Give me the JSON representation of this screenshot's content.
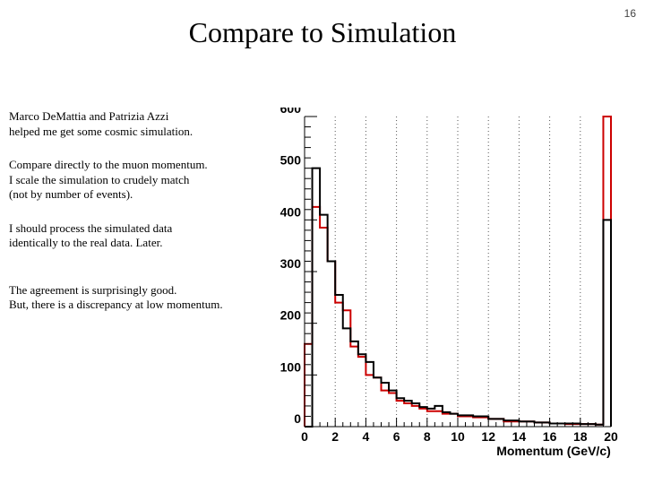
{
  "slide": {
    "title": "Compare to Simulation",
    "page_number": "16",
    "notes": [
      "Marco DeMattia and Patrizia Azzi\nhelped me get some cosmic simulation.",
      "Compare directly to the muon momentum.\nI scale the simulation to crudely match\n(not by number of events).",
      "I should process the simulated data\nidentically to the real data. Later.",
      "The agreement is surprisingly good.\nBut, there is a discrepancy at low momentum."
    ]
  },
  "chart_data": {
    "type": "step-histogram",
    "title": "",
    "xlabel": "Momentum (GeV/c)",
    "ylabel": "",
    "xlim": [
      0,
      20
    ],
    "ylim": [
      0,
      600
    ],
    "x_ticks": [
      "0",
      "2",
      "4",
      "6",
      "8",
      "10",
      "12",
      "14",
      "16",
      "18",
      "20"
    ],
    "y_ticks": [
      "0",
      "100",
      "200",
      "300",
      "400",
      "500",
      "600"
    ],
    "grid": "vertical-dotted",
    "bin_edges": [
      0,
      0.5,
      1,
      1.5,
      2,
      2.5,
      3,
      3.5,
      4,
      4.5,
      5,
      5.5,
      6,
      6.5,
      7,
      7.5,
      8,
      8.5,
      9,
      9.5,
      10,
      11,
      12,
      13,
      14,
      15,
      16,
      17,
      18,
      19,
      19.5,
      20
    ],
    "series": [
      {
        "color": "#000000",
        "values": [
          0,
          500,
          410,
          320,
          255,
          190,
          165,
          140,
          125,
          95,
          85,
          70,
          55,
          50,
          45,
          38,
          35,
          40,
          28,
          25,
          22,
          20,
          15,
          12,
          10,
          8,
          6,
          6,
          5,
          4,
          400
        ]
      },
      {
        "color": "#cc0000",
        "values": [
          160,
          425,
          385,
          320,
          240,
          225,
          155,
          135,
          100,
          95,
          70,
          65,
          50,
          45,
          40,
          35,
          30,
          30,
          25,
          25,
          20,
          18,
          15,
          10,
          10,
          8,
          6,
          5,
          5,
          4,
          600
        ]
      }
    ]
  }
}
